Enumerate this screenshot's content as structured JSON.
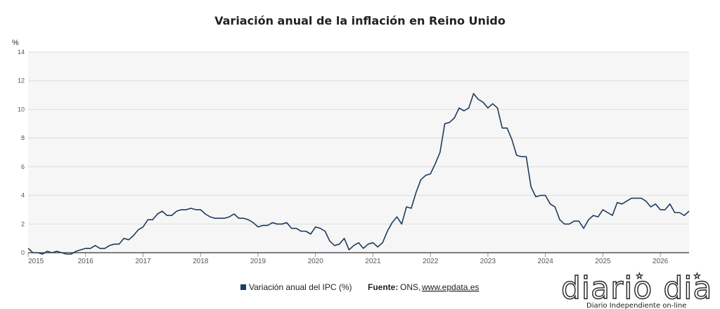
{
  "chart_data": {
    "type": "line",
    "title": "Variación anual de la inflación en Reino Unido",
    "ylabel": "%",
    "xlabel": "",
    "ylim": [
      0,
      14
    ],
    "yticks": [
      0,
      2,
      4,
      6,
      8,
      10,
      12,
      14
    ],
    "xticks": [
      "2015",
      "2016",
      "2017",
      "2018",
      "2019",
      "2020",
      "2021",
      "2022",
      "2023",
      "2024",
      "2025",
      "2026"
    ],
    "xstart": "2015-01",
    "grid": true,
    "legend_position": "bottom-center",
    "series": [
      {
        "name": "Variación anual del IPC (%)",
        "color": "#1f3c5e",
        "values": [
          0.3,
          0.0,
          0.0,
          -0.1,
          0.1,
          0.0,
          0.1,
          0.0,
          -0.1,
          -0.1,
          0.1,
          0.2,
          0.3,
          0.3,
          0.5,
          0.3,
          0.3,
          0.5,
          0.6,
          0.6,
          1.0,
          0.9,
          1.2,
          1.6,
          1.8,
          2.3,
          2.3,
          2.7,
          2.9,
          2.6,
          2.6,
          2.9,
          3.0,
          3.0,
          3.1,
          3.0,
          3.0,
          2.7,
          2.5,
          2.4,
          2.4,
          2.4,
          2.5,
          2.7,
          2.4,
          2.4,
          2.3,
          2.1,
          1.8,
          1.9,
          1.9,
          2.1,
          2.0,
          2.0,
          2.1,
          1.7,
          1.7,
          1.5,
          1.5,
          1.3,
          1.8,
          1.7,
          1.5,
          0.8,
          0.5,
          0.6,
          1.0,
          0.2,
          0.5,
          0.7,
          0.3,
          0.6,
          0.7,
          0.4,
          0.7,
          1.5,
          2.1,
          2.5,
          2.0,
          3.2,
          3.1,
          4.2,
          5.1,
          5.4,
          5.5,
          6.2,
          7.0,
          9.0,
          9.1,
          9.4,
          10.1,
          9.9,
          10.1,
          11.1,
          10.7,
          10.5,
          10.1,
          10.4,
          10.1,
          8.7,
          8.7,
          7.9,
          6.8,
          6.7,
          6.7,
          4.6,
          3.9,
          4.0,
          4.0,
          3.4,
          3.2,
          2.3,
          2.0,
          2.0,
          2.2,
          2.2,
          1.7,
          2.3,
          2.6,
          2.5,
          3.0,
          2.8,
          2.6,
          3.5,
          3.4,
          3.6,
          3.8,
          3.8,
          3.8,
          3.6,
          3.2,
          3.4,
          3.0,
          3.0,
          3.4,
          2.8,
          2.8,
          2.6,
          2.9
        ]
      }
    ]
  },
  "legend": {
    "series_label": "Variación anual del IPC (%)",
    "source_label": "Fuente:",
    "source_text": "ONS,",
    "source_link": "www.epdata.es"
  },
  "logo": {
    "name": "diario dia",
    "tagline": "Diario Independiente on-line"
  }
}
